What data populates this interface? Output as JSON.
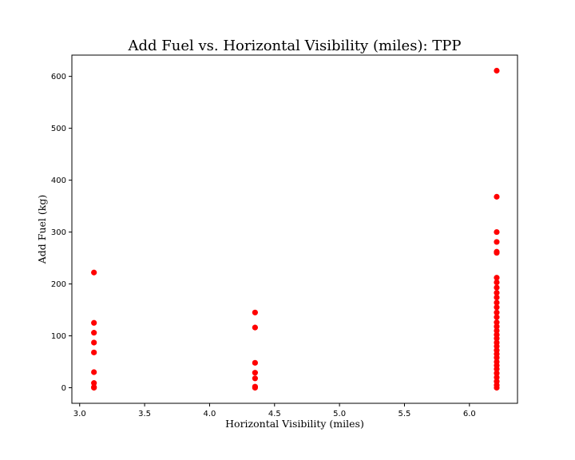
{
  "chart_data": {
    "type": "scatter",
    "title": "Add Fuel vs. Horizontal Visibility (miles): TPP",
    "xlabel": "Horizontal Visibility (miles)",
    "ylabel": "Add Fuel (kg)",
    "xlim": [
      2.94,
      6.37
    ],
    "ylim": [
      -30,
      641
    ],
    "xticks": [
      "3.0",
      "3.5",
      "4.0",
      "4.5",
      "5.0",
      "5.5",
      "6.0"
    ],
    "yticks": [
      "0",
      "100",
      "200",
      "300",
      "400",
      "500",
      "600"
    ],
    "grid": false,
    "marker_color": "#ff0000",
    "series": [
      {
        "points": [
          [
            3.11,
            222
          ],
          [
            3.11,
            125
          ],
          [
            3.11,
            106
          ],
          [
            3.11,
            87
          ],
          [
            3.11,
            68
          ],
          [
            3.11,
            30
          ],
          [
            3.11,
            9
          ],
          [
            3.11,
            1
          ],
          [
            3.11,
            0
          ],
          [
            4.35,
            145
          ],
          [
            4.35,
            116
          ],
          [
            4.35,
            48
          ],
          [
            4.35,
            29
          ],
          [
            4.35,
            18
          ],
          [
            4.35,
            2
          ],
          [
            4.35,
            0
          ],
          [
            6.21,
            611
          ],
          [
            6.21,
            368
          ],
          [
            6.21,
            300
          ],
          [
            6.21,
            281
          ],
          [
            6.21,
            262
          ],
          [
            6.21,
            260
          ],
          [
            6.21,
            212
          ],
          [
            6.21,
            203
          ],
          [
            6.21,
            193
          ],
          [
            6.21,
            183
          ],
          [
            6.21,
            174
          ],
          [
            6.21,
            164
          ],
          [
            6.21,
            155
          ],
          [
            6.21,
            145
          ],
          [
            6.21,
            136
          ],
          [
            6.21,
            126
          ],
          [
            6.21,
            118
          ],
          [
            6.21,
            110
          ],
          [
            6.21,
            102
          ],
          [
            6.21,
            95
          ],
          [
            6.21,
            87
          ],
          [
            6.21,
            80
          ],
          [
            6.21,
            72
          ],
          [
            6.21,
            65
          ],
          [
            6.21,
            58
          ],
          [
            6.21,
            50
          ],
          [
            6.21,
            43
          ],
          [
            6.21,
            36
          ],
          [
            6.21,
            28
          ],
          [
            6.21,
            20
          ],
          [
            6.21,
            12
          ],
          [
            6.21,
            5
          ],
          [
            6.21,
            0
          ]
        ]
      }
    ]
  }
}
